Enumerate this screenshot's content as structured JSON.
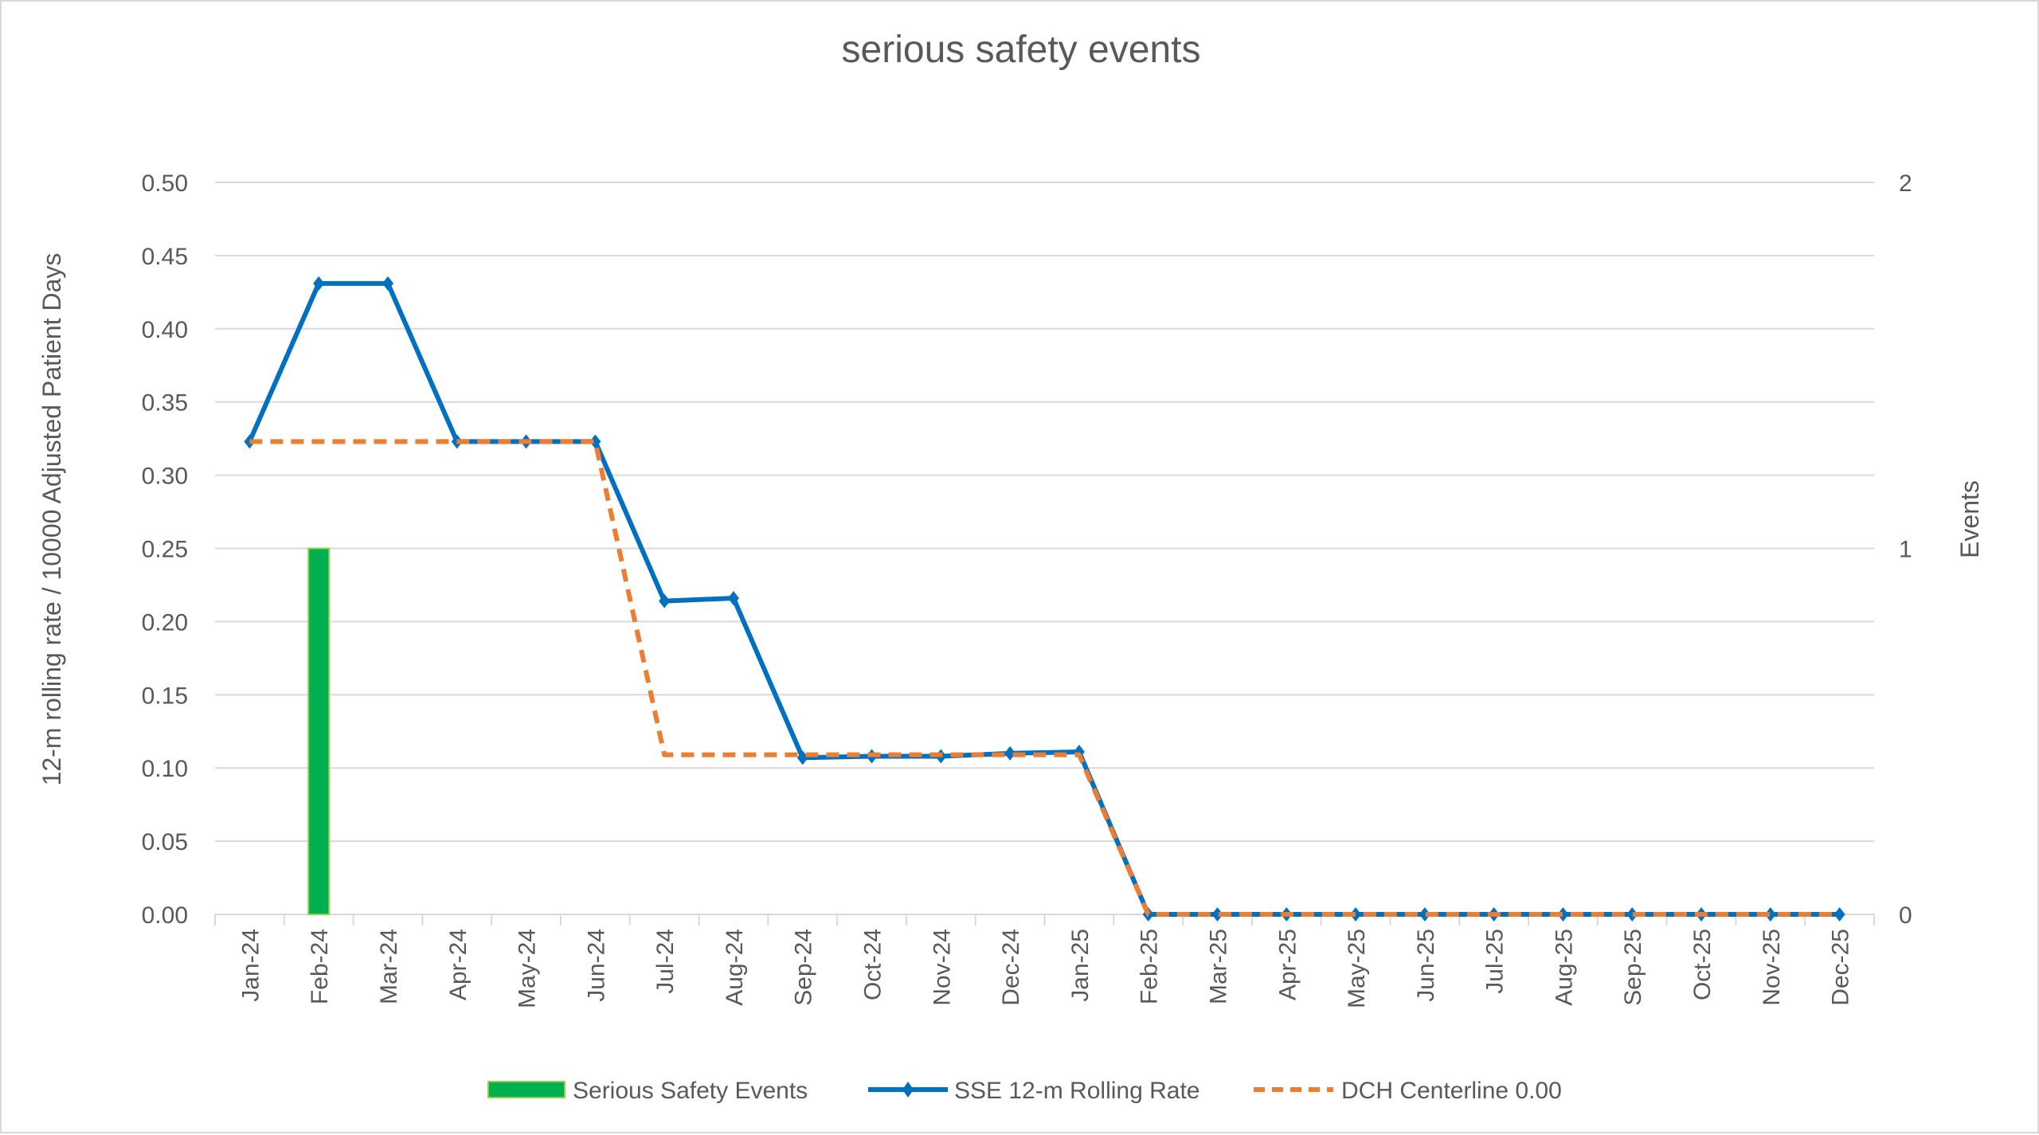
{
  "chart_data": {
    "type": "bar+line",
    "title": "serious safety events",
    "ylabel": "12-m rolling rate / 10000 Adjusted Patient Days",
    "y2label": "Events",
    "ylim": [
      0,
      0.5
    ],
    "y2lim": [
      0,
      2
    ],
    "yticks": [
      "0.00",
      "0.05",
      "0.10",
      "0.15",
      "0.20",
      "0.25",
      "0.30",
      "0.35",
      "0.40",
      "0.45",
      "0.50"
    ],
    "y2ticks": [
      "0",
      "1",
      "2"
    ],
    "grid": true,
    "legend_position": "bottom",
    "categories": [
      "Jan-24",
      "Feb-24",
      "Mar-24",
      "Apr-24",
      "May-24",
      "Jun-24",
      "Jul-24",
      "Aug-24",
      "Sep-24",
      "Oct-24",
      "Nov-24",
      "Dec-24",
      "Jan-25",
      "Feb-25",
      "Mar-25",
      "Apr-25",
      "May-25",
      "Jun-25",
      "Jul-25",
      "Aug-25",
      "Sep-25",
      "Oct-25",
      "Nov-25",
      "Dec-25"
    ],
    "series": [
      {
        "name": "Serious Safety Events",
        "type": "bar",
        "axis": "right",
        "color": "#00b050",
        "edge": "#92d050",
        "values": [
          0,
          1,
          0,
          0,
          0,
          0,
          0,
          0,
          0,
          0,
          0,
          0,
          0,
          0,
          0,
          0,
          0,
          0,
          0,
          0,
          0,
          0,
          0,
          0
        ]
      },
      {
        "name": "SSE 12-m Rolling Rate",
        "type": "line",
        "axis": "left",
        "color": "#0070c0",
        "marker": "diamond",
        "values": [
          0.323,
          0.431,
          0.431,
          0.323,
          0.323,
          0.323,
          0.214,
          0.216,
          0.107,
          0.108,
          0.108,
          0.11,
          0.111,
          0,
          0,
          0,
          0,
          0,
          0,
          0,
          0,
          0,
          0,
          0
        ]
      },
      {
        "name": "DCH Centerline 0.00",
        "type": "line",
        "axis": "left",
        "color": "#ed7d31",
        "dash": true,
        "values": [
          0.323,
          0.323,
          0.323,
          0.323,
          0.323,
          0.323,
          0.109,
          0.109,
          0.109,
          0.109,
          0.109,
          0.109,
          0.109,
          0,
          0,
          0,
          0,
          0,
          0,
          0,
          0,
          0,
          0,
          0
        ]
      }
    ]
  }
}
